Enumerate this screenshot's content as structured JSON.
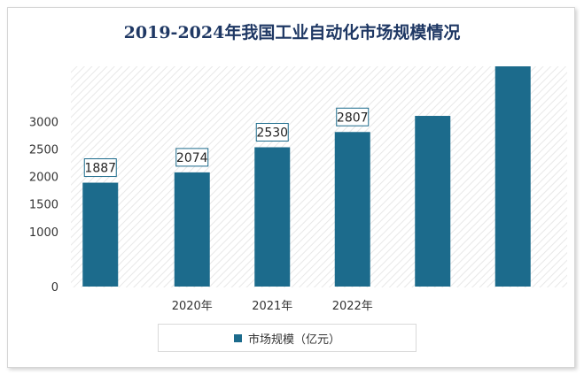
{
  "chart_data": {
    "type": "bar",
    "title": "2019-2024年我国工业自动化市场规模情况",
    "categories": [
      "",
      "2020年",
      "2021年",
      "2022年",
      "",
      ""
    ],
    "values": [
      1887,
      2074,
      2530,
      2807,
      3100,
      4000
    ],
    "data_labels": [
      "1887",
      "2074",
      "2530",
      "2807",
      "",
      ""
    ],
    "ylim": [
      0,
      4000
    ],
    "yticks": [
      "0",
      "",
      "1000",
      "1500",
      "2000",
      "2500",
      "3000",
      "",
      ""
    ],
    "ytick_values": [
      0,
      500,
      1000,
      1500,
      2000,
      2500,
      3000,
      3500,
      4000
    ],
    "series": [
      {
        "name": "市场规模（亿元）",
        "values": [
          1887,
          2074,
          2530,
          2807,
          3100,
          4000
        ]
      }
    ],
    "legend": "bottom",
    "grid": false
  },
  "colors": {
    "bar": "#1c6b8c",
    "title": "#1f3864",
    "plot_bg_hatch": "#e6e6e6"
  }
}
